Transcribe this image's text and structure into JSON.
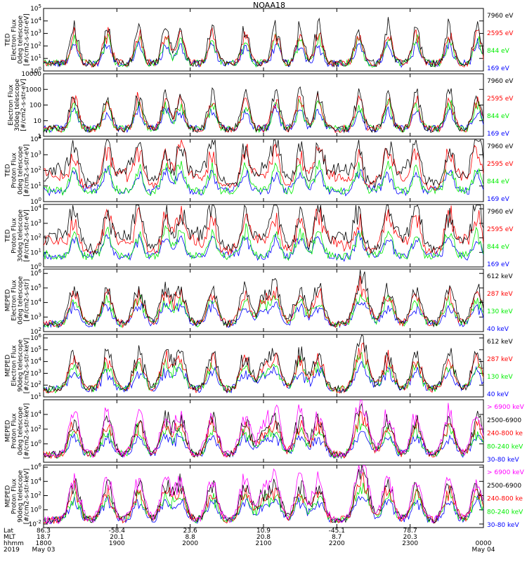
{
  "title": "NOAA18",
  "colors": {
    "black": "#000000",
    "red": "#ff0000",
    "green": "#00ee00",
    "blue": "#0000ff",
    "magenta": "#ff00ff"
  },
  "chart_data": [
    {
      "type": "line",
      "ylabel": [
        "TED",
        "Electron Flux",
        "0deg telescope",
        "[#/cm2-s-str-eV]"
      ],
      "yticks": [
        {
          "v": 0,
          "label": "10^0"
        },
        {
          "v": 1,
          "label": "10^1"
        },
        {
          "v": 2,
          "label": "10^2"
        },
        {
          "v": 3,
          "label": "10^3"
        },
        {
          "v": 4,
          "label": "10^4"
        },
        {
          "v": 5,
          "label": "10^5"
        }
      ],
      "ylim_log10": [
        0,
        5
      ],
      "series": [
        {
          "name": "7960 eV",
          "color": "black"
        },
        {
          "name": "2595 eV",
          "color": "red"
        },
        {
          "name": "844 eV",
          "color": "green"
        },
        {
          "name": "169 eV",
          "color": "blue"
        }
      ]
    },
    {
      "type": "line",
      "ylabel": [
        "Electron Flux",
        "30deg telescope",
        "[#/cm2-s-str-eV]"
      ],
      "yticks": [
        {
          "v": 0,
          "label": "1"
        },
        {
          "v": 1,
          "label": "10"
        },
        {
          "v": 2,
          "label": "100"
        },
        {
          "v": 3,
          "label": "1000"
        },
        {
          "v": 4,
          "label": "10000"
        }
      ],
      "ylim_log10": [
        0,
        4
      ],
      "series": [
        {
          "name": "7960 eV",
          "color": "black"
        },
        {
          "name": "2595 eV",
          "color": "red"
        },
        {
          "name": "844 eV",
          "color": "green"
        },
        {
          "name": "169 eV",
          "color": "blue"
        }
      ]
    },
    {
      "type": "line",
      "ylabel": [
        "TED",
        "Proton Flux",
        "0deg telescope",
        "[#/cm2-s-str-eV]"
      ],
      "yticks": [
        {
          "v": 0,
          "label": "10^0"
        },
        {
          "v": 1,
          "label": "10^1"
        },
        {
          "v": 2,
          "label": "10^2"
        },
        {
          "v": 3,
          "label": "10^3"
        },
        {
          "v": 4,
          "label": "10^4"
        }
      ],
      "ylim_log10": [
        0,
        4
      ],
      "series": [
        {
          "name": "7960 eV",
          "color": "black"
        },
        {
          "name": "2595 eV",
          "color": "red"
        },
        {
          "name": "844 eV",
          "color": "green"
        },
        {
          "name": "169 eV",
          "color": "blue"
        }
      ]
    },
    {
      "type": "line",
      "ylabel": [
        "TED",
        "Proton Flux",
        "30deg telescope",
        "[#/cm2-s-str-eV]"
      ],
      "yticks": [
        {
          "v": 0,
          "label": "10^0"
        },
        {
          "v": 1,
          "label": "10^1"
        },
        {
          "v": 2,
          "label": "10^2"
        },
        {
          "v": 3,
          "label": "10^3"
        },
        {
          "v": 4,
          "label": "10^4"
        }
      ],
      "ylim_log10": [
        0,
        4.3
      ],
      "series": [
        {
          "name": "7960 eV",
          "color": "black"
        },
        {
          "name": "2595 eV",
          "color": "red"
        },
        {
          "name": "844 eV",
          "color": "green"
        },
        {
          "name": "169 eV",
          "color": "blue"
        }
      ]
    },
    {
      "type": "line",
      "ylabel": [
        "MEPED",
        "Electron Flux",
        "0deg telescope",
        "[#/cm2-s-str]"
      ],
      "yticks": [
        {
          "v": 2,
          "label": "10^2"
        },
        {
          "v": 3,
          "label": "10^3"
        },
        {
          "v": 4,
          "label": "10^4"
        },
        {
          "v": 5,
          "label": "10^5"
        },
        {
          "v": 6,
          "label": "10^6"
        }
      ],
      "ylim_log10": [
        2,
        6.3
      ],
      "series": [
        {
          "name": "612 keV",
          "color": "black"
        },
        {
          "name": "287 keV",
          "color": "red"
        },
        {
          "name": "130 keV",
          "color": "green"
        },
        {
          "name": "40 keV",
          "color": "blue"
        }
      ]
    },
    {
      "type": "line",
      "ylabel": [
        "MEPED",
        "Electron Flux",
        "90deg telescope",
        "[#/cm2-s-str-keV]"
      ],
      "yticks": [
        {
          "v": 1,
          "label": "10^1"
        },
        {
          "v": 2,
          "label": "10^2"
        },
        {
          "v": 3,
          "label": "10^3"
        },
        {
          "v": 4,
          "label": "10^4"
        },
        {
          "v": 5,
          "label": "10^5"
        },
        {
          "v": 6,
          "label": "10^6"
        }
      ],
      "ylim_log10": [
        1,
        6.3
      ],
      "series": [
        {
          "name": "612 keV",
          "color": "black"
        },
        {
          "name": "287 keV",
          "color": "red"
        },
        {
          "name": "130 keV",
          "color": "green"
        },
        {
          "name": "40 keV",
          "color": "blue"
        }
      ]
    },
    {
      "type": "line",
      "ylabel": [
        "MEPED",
        "Proton Flux",
        "0deg telescope",
        "[#/cm2-s-str-keV]"
      ],
      "yticks": [
        {
          "v": 0,
          "label": "10^0"
        },
        {
          "v": 2,
          "label": "10^2"
        },
        {
          "v": 4,
          "label": "10^4"
        }
      ],
      "ylim_log10": [
        -2.5,
        6
      ],
      "series": [
        {
          "name": "> 6900 keV",
          "color": "magenta"
        },
        {
          "name": "2500-6900",
          "color": "black"
        },
        {
          "name": "240-800 ke",
          "color": "red"
        },
        {
          "name": "80-240 keV",
          "color": "green"
        },
        {
          "name": "30-80 keV",
          "color": "blue"
        }
      ]
    },
    {
      "type": "line",
      "ylabel": [
        "MEPED",
        "Proton Flux",
        "90deg telescope",
        "[#/cm2-s-str-keV]"
      ],
      "yticks": [
        {
          "v": -2,
          "label": "10^-2"
        },
        {
          "v": 0,
          "label": "10^0"
        },
        {
          "v": 2,
          "label": "10^2"
        },
        {
          "v": 4,
          "label": "10^4"
        },
        {
          "v": 6,
          "label": "10^6"
        }
      ],
      "ylim_log10": [
        -2.5,
        6.3
      ],
      "series": [
        {
          "name": "> 6900 keV",
          "color": "magenta"
        },
        {
          "name": "2500-6900",
          "color": "black"
        },
        {
          "name": "240-800 ke",
          "color": "red"
        },
        {
          "name": "80-240 keV",
          "color": "green"
        },
        {
          "name": "30-80 keV",
          "color": "blue"
        }
      ]
    }
  ],
  "xaxis": {
    "row_labels": [
      "Lat",
      "MLT",
      "hhmm",
      "2019"
    ],
    "ticks": [
      {
        "t": 0,
        "lat": "86.3",
        "mlt": "18.7",
        "hhmm": "1800",
        "date": "May 03"
      },
      {
        "t": 60,
        "lat": "-58.4",
        "mlt": "20.1",
        "hhmm": "1900",
        "date": ""
      },
      {
        "t": 120,
        "lat": "23.6",
        "mlt": "8.8",
        "hhmm": "2000",
        "date": ""
      },
      {
        "t": 180,
        "lat": "10.9",
        "mlt": "20.8",
        "hhmm": "2100",
        "date": ""
      },
      {
        "t": 240,
        "lat": "-45.1",
        "mlt": "8.7",
        "hhmm": "2200",
        "date": ""
      },
      {
        "t": 300,
        "lat": "78.7",
        "mlt": "20.3",
        "hhmm": "2300",
        "date": ""
      },
      {
        "t": 360,
        "lat": "",
        "mlt": "",
        "hhmm": "0000",
        "date": "May 04"
      }
    ],
    "xlim_minutes": [
      0,
      360
    ]
  }
}
